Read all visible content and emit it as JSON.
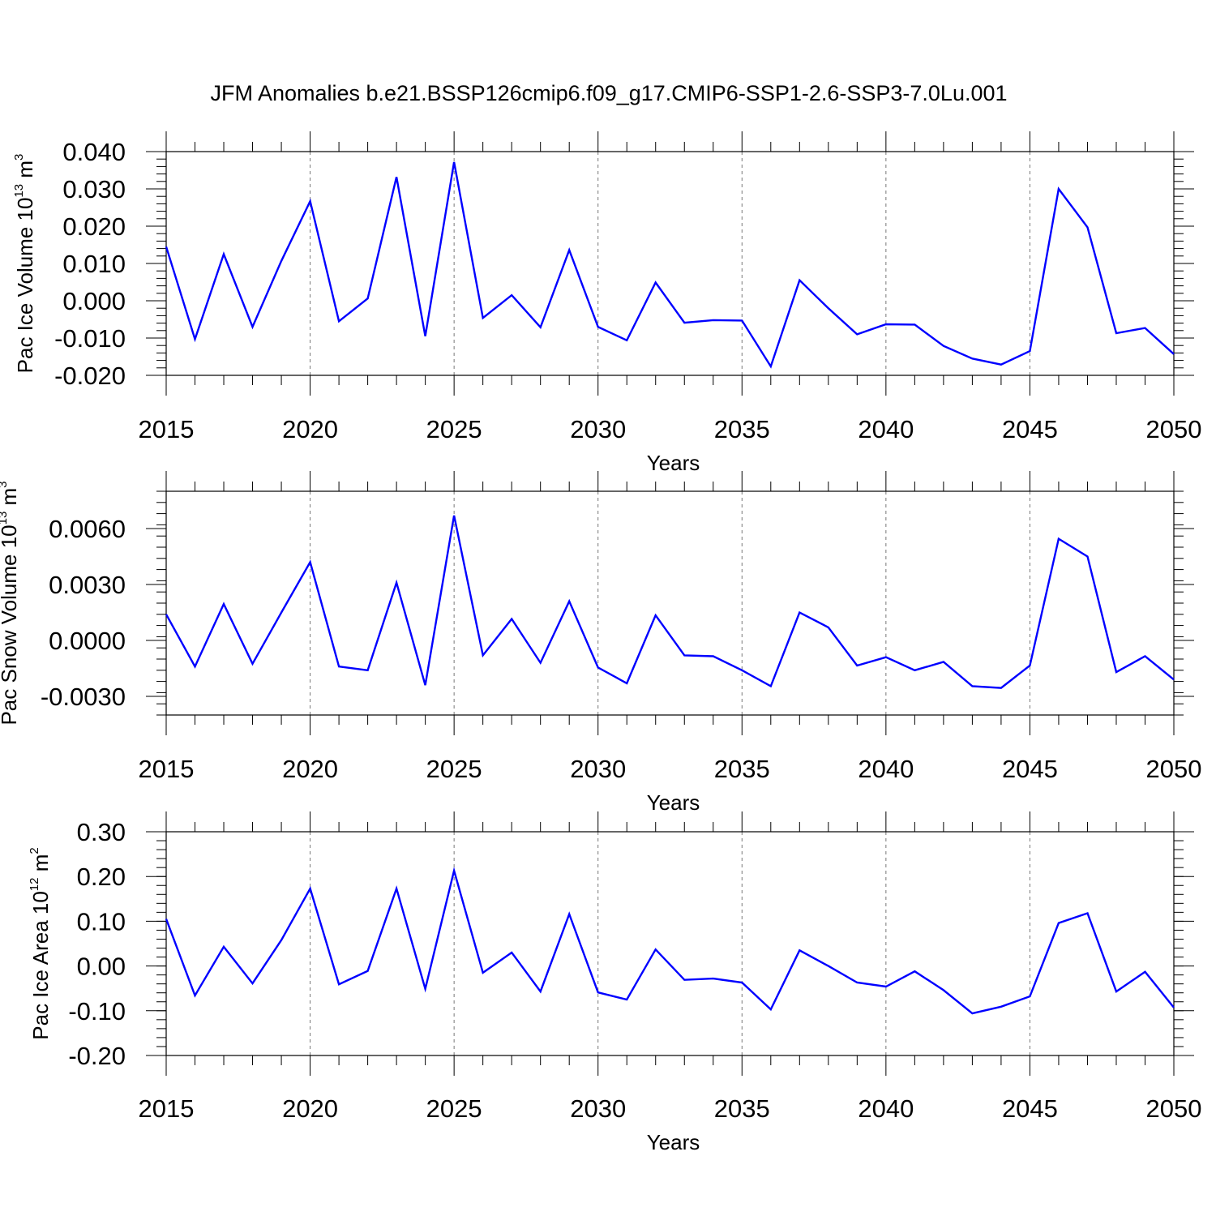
{
  "title": "JFM Anomalies b.e21.BSSP126cmip6.f09_g17.CMIP6-SSP1-2.6-SSP3-7.0Lu.001",
  "colors": {
    "line": "#0000ff",
    "axes": "#000000",
    "grid": "#777777"
  },
  "chart_data": [
    {
      "type": "line",
      "xlabel": "Years",
      "ylabel": {
        "prefix": "Pac Ice Volume 10",
        "exponent": "13",
        "unit": " m",
        "unit_exponent": "3"
      },
      "xlim": [
        2015,
        2050
      ],
      "ylim": [
        -0.02,
        0.04
      ],
      "x_ticks": [
        "2015",
        "2020",
        "2025",
        "2030",
        "2035",
        "2040",
        "2045",
        "2050"
      ],
      "y_tick_values": [
        -0.02,
        -0.01,
        0.0,
        0.01,
        0.02,
        0.03,
        0.04
      ],
      "y_tick_labels": [
        "-0.020",
        "-0.010",
        "0.000",
        "0.010",
        "0.020",
        "0.030",
        "0.040"
      ],
      "grid": "vertical dashed every 5 years",
      "x": [
        2015,
        2016,
        2017,
        2018,
        2019,
        2020,
        2021,
        2022,
        2023,
        2024,
        2025,
        2026,
        2027,
        2028,
        2029,
        2030,
        2031,
        2032,
        2033,
        2034,
        2035,
        2036,
        2037,
        2038,
        2039,
        2040,
        2041,
        2042,
        2043,
        2044,
        2045,
        2046,
        2047,
        2048,
        2049,
        2050
      ],
      "values": [
        0.0145,
        -0.0103,
        0.0125,
        -0.007,
        0.0107,
        0.0267,
        -0.0055,
        0.0006,
        0.0332,
        -0.0095,
        0.0372,
        -0.0046,
        0.0015,
        -0.0071,
        0.0136,
        -0.007,
        -0.0106,
        0.0049,
        -0.0059,
        -0.0052,
        -0.0053,
        -0.0176,
        0.0055,
        -0.002,
        -0.009,
        -0.0063,
        -0.0064,
        -0.0121,
        -0.0155,
        -0.0171,
        -0.0135,
        0.03,
        0.0197,
        -0.0087,
        -0.0073,
        -0.0143
      ]
    },
    {
      "type": "line",
      "xlabel": "Years",
      "ylabel": {
        "prefix": "Pac Snow Volume 10",
        "exponent": "13",
        "unit": " m",
        "unit_exponent": "3"
      },
      "xlim": [
        2015,
        2050
      ],
      "ylim": [
        -0.004,
        0.008
      ],
      "x_ticks": [
        "2015",
        "2020",
        "2025",
        "2030",
        "2035",
        "2040",
        "2045",
        "2050"
      ],
      "y_tick_values": [
        -0.003,
        0.0,
        0.003,
        0.006
      ],
      "y_tick_labels": [
        "-0.0030",
        "0.0000",
        "0.0030",
        "0.0060"
      ],
      "grid": "vertical dashed every 5 years",
      "x": [
        2015,
        2016,
        2017,
        2018,
        2019,
        2020,
        2021,
        2022,
        2023,
        2024,
        2025,
        2026,
        2027,
        2028,
        2029,
        2030,
        2031,
        2032,
        2033,
        2034,
        2035,
        2036,
        2037,
        2038,
        2039,
        2040,
        2041,
        2042,
        2043,
        2044,
        2045,
        2046,
        2047,
        2048,
        2049,
        2050
      ],
      "values": [
        0.0014,
        -0.0014,
        0.00195,
        -0.00125,
        0.0015,
        0.0042,
        -0.0014,
        -0.0016,
        0.0031,
        -0.0024,
        0.0067,
        -0.0008,
        0.00115,
        -0.0012,
        0.0021,
        -0.00145,
        -0.0023,
        0.00135,
        -0.0008,
        -0.00085,
        -0.0016,
        -0.00245,
        0.0015,
        0.0007,
        -0.00135,
        -0.0009,
        -0.0016,
        -0.00115,
        -0.00245,
        -0.00255,
        -0.00135,
        0.00545,
        0.0045,
        -0.0017,
        -0.00085,
        -0.0021
      ]
    },
    {
      "type": "line",
      "xlabel": "Years",
      "ylabel": {
        "prefix": "Pac Ice Area 10",
        "exponent": "12",
        "unit": " m",
        "unit_exponent": "2"
      },
      "xlim": [
        2015,
        2050
      ],
      "ylim": [
        -0.2,
        0.3
      ],
      "x_ticks": [
        "2015",
        "2020",
        "2025",
        "2030",
        "2035",
        "2040",
        "2045",
        "2050"
      ],
      "y_tick_values": [
        -0.2,
        -0.1,
        0.0,
        0.1,
        0.2,
        0.3
      ],
      "y_tick_labels": [
        "-0.20",
        "-0.10",
        "0.00",
        "0.10",
        "0.20",
        "0.30"
      ],
      "grid": "vertical dashed every 5 years",
      "x": [
        2015,
        2016,
        2017,
        2018,
        2019,
        2020,
        2021,
        2022,
        2023,
        2024,
        2025,
        2026,
        2027,
        2028,
        2029,
        2030,
        2031,
        2032,
        2033,
        2034,
        2035,
        2036,
        2037,
        2038,
        2039,
        2040,
        2041,
        2042,
        2043,
        2044,
        2045,
        2046,
        2047,
        2048,
        2049,
        2050
      ],
      "values": [
        0.105,
        -0.066,
        0.043,
        -0.039,
        0.058,
        0.173,
        -0.041,
        -0.011,
        0.173,
        -0.051,
        0.213,
        -0.015,
        0.03,
        -0.057,
        0.116,
        -0.059,
        -0.075,
        0.037,
        -0.031,
        -0.028,
        -0.037,
        -0.097,
        0.035,
        0.0,
        -0.037,
        -0.046,
        -0.012,
        -0.054,
        -0.106,
        -0.091,
        -0.068,
        0.096,
        0.118,
        -0.057,
        -0.013,
        -0.093
      ]
    }
  ]
}
